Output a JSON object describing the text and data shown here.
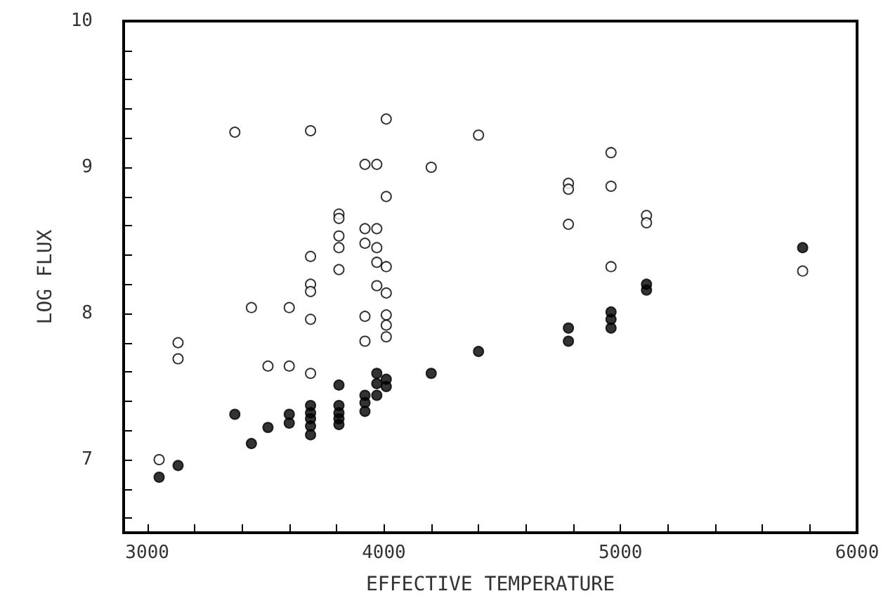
{
  "chart_data": {
    "type": "scatter",
    "xlabel": "EFFECTIVE TEMPERATURE",
    "ylabel": "LOG FLUX",
    "xlim": [
      2900,
      6000
    ],
    "xticks": [
      3000,
      {
        "value": 3200,
        "label": null
      },
      {
        "value": 3400,
        "label": null
      },
      {
        "value": 3600,
        "label": null
      },
      {
        "value": 3800,
        "label": null
      },
      4000,
      {
        "value": 4200,
        "label": null
      },
      {
        "value": 4400,
        "label": null
      },
      {
        "value": 4600,
        "label": null
      },
      {
        "value": 4800,
        "label": null
      },
      5000,
      {
        "value": 5200,
        "label": null
      },
      {
        "value": 5400,
        "label": null
      },
      {
        "value": 5600,
        "label": null
      },
      {
        "value": 5800,
        "label": null
      },
      6000
    ],
    "ylim": [
      6.5,
      10
    ],
    "yticks": [
      {
        "value": 6.6,
        "label": null
      },
      {
        "value": 6.8,
        "label": null
      },
      7,
      {
        "value": 7.2,
        "label": null
      },
      {
        "value": 7.4,
        "label": null
      },
      {
        "value": 7.6,
        "label": null
      },
      {
        "value": 7.8,
        "label": null
      },
      8,
      {
        "value": 8.2,
        "label": null
      },
      {
        "value": 8.4,
        "label": null
      },
      {
        "value": 8.6,
        "label": null
      },
      {
        "value": 8.8,
        "label": null
      },
      9,
      {
        "value": 9.2,
        "label": null
      },
      {
        "value": 9.4,
        "label": null
      },
      {
        "value": 9.6,
        "label": null
      },
      {
        "value": 9.8,
        "label": null
      },
      10
    ],
    "grid": false,
    "marker": "circle",
    "series": [
      {
        "color": "#000000",
        "x": [
          3050,
          3130,
          3370,
          3440,
          3510,
          3600,
          3600,
          3690,
          3690,
          3690,
          3690,
          3690,
          3810,
          3810,
          3810,
          3810,
          3810,
          3920,
          3920,
          3920,
          3970,
          3970,
          3970,
          4010,
          4010,
          4200,
          4400,
          4780,
          4780,
          4960,
          4960,
          4960,
          5110,
          5110,
          5770
        ],
        "values": [
          6.88,
          6.96,
          7.31,
          7.11,
          7.22,
          7.31,
          7.25,
          7.37,
          7.32,
          7.28,
          7.23,
          7.17,
          7.51,
          7.37,
          7.32,
          7.28,
          7.24,
          7.44,
          7.39,
          7.33,
          7.59,
          7.52,
          7.44,
          7.55,
          7.5,
          7.59,
          7.74,
          7.9,
          7.81,
          8.01,
          7.96,
          7.9,
          8.2,
          8.16,
          8.45
        ]
      },
      {
        "color": "#ffffff",
        "x": [
          3050,
          3130,
          3130,
          3370,
          3440,
          3510,
          3600,
          3600,
          3690,
          3690,
          3690,
          3690,
          3690,
          3690,
          3810,
          3810,
          3810,
          3810,
          3810,
          3920,
          3920,
          3920,
          3920,
          3920,
          3970,
          3970,
          3970,
          3970,
          3970,
          4010,
          4010,
          4010,
          4010,
          4010,
          4010,
          4010,
          4200,
          4400,
          4780,
          4780,
          4780,
          4960,
          4960,
          4960,
          5110,
          5110,
          5770
        ],
        "values": [
          7.0,
          7.8,
          7.69,
          9.24,
          8.04,
          7.64,
          8.04,
          7.64,
          9.25,
          8.39,
          8.2,
          8.15,
          7.96,
          7.59,
          8.68,
          8.65,
          8.53,
          8.45,
          8.3,
          9.02,
          8.58,
          8.48,
          7.98,
          7.81,
          9.02,
          8.58,
          8.45,
          8.35,
          8.19,
          9.33,
          8.8,
          8.32,
          8.14,
          7.99,
          7.92,
          7.84,
          9.0,
          9.22,
          8.89,
          8.85,
          8.61,
          9.1,
          8.87,
          8.32,
          8.67,
          8.62,
          8.29
        ]
      }
    ]
  }
}
